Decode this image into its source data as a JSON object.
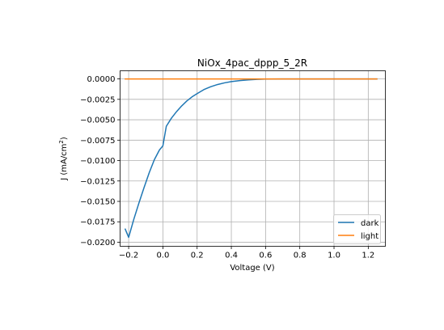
{
  "chart_data": {
    "type": "line",
    "title": "NiOx_4pac_dppp_5_2R",
    "xlabel": "Voltage (V)",
    "ylabel_main": "J (mA/cm",
    "ylabel_sup": "2",
    "ylabel_close": ")",
    "xlim": [
      -0.25,
      1.3
    ],
    "ylim": [
      -0.0205,
      0.001
    ],
    "xticks": [
      -0.2,
      0.0,
      0.2,
      0.4,
      0.6,
      0.8,
      1.0,
      1.2
    ],
    "xtick_labels": [
      "−0.2",
      "0.0",
      "0.2",
      "0.4",
      "0.6",
      "0.8",
      "1.0",
      "1.2"
    ],
    "yticks": [
      0.0,
      -0.0025,
      -0.005,
      -0.0075,
      -0.01,
      -0.0125,
      -0.015,
      -0.0175,
      -0.02
    ],
    "ytick_labels": [
      "0.0000",
      "−0.0025",
      "−0.0050",
      "−0.0075",
      "−0.0100",
      "−0.0125",
      "−0.0150",
      "−0.0175",
      "−0.0200"
    ],
    "grid": true,
    "legend_position": "lower-right",
    "series": [
      {
        "name": "dark",
        "color": "#1f77b4",
        "x": [
          -0.22,
          -0.2,
          -0.17,
          -0.14,
          -0.11,
          -0.08,
          -0.05,
          -0.02,
          0.0,
          0.02,
          0.05,
          0.08,
          0.11,
          0.14,
          0.17,
          0.2,
          0.24,
          0.28,
          0.32,
          0.36,
          0.4,
          0.45,
          0.5,
          0.55,
          0.6,
          0.7,
          0.8,
          0.9,
          1.0,
          1.1,
          1.25
        ],
        "y": [
          -0.0184,
          -0.0194,
          -0.0172,
          -0.0152,
          -0.0133,
          -0.0115,
          -0.0099,
          -0.0087,
          -0.0082,
          -0.0058,
          -0.0048,
          -0.004,
          -0.0033,
          -0.0027,
          -0.0022,
          -0.0018,
          -0.0013,
          -0.00095,
          -0.00068,
          -0.00048,
          -0.00033,
          -0.0002,
          -0.00011,
          -5e-05,
          -2e-05,
          -5e-06,
          0.0,
          0.0,
          0.0,
          0.0,
          0.0
        ]
      },
      {
        "name": "light",
        "color": "#ff7f0e",
        "x": [
          -0.22,
          0.0,
          0.2,
          0.4,
          0.6,
          0.8,
          1.0,
          1.25
        ],
        "y": [
          0.0,
          0.0,
          0.0,
          0.0,
          0.0,
          0.0,
          0.0,
          0.0
        ]
      }
    ]
  }
}
